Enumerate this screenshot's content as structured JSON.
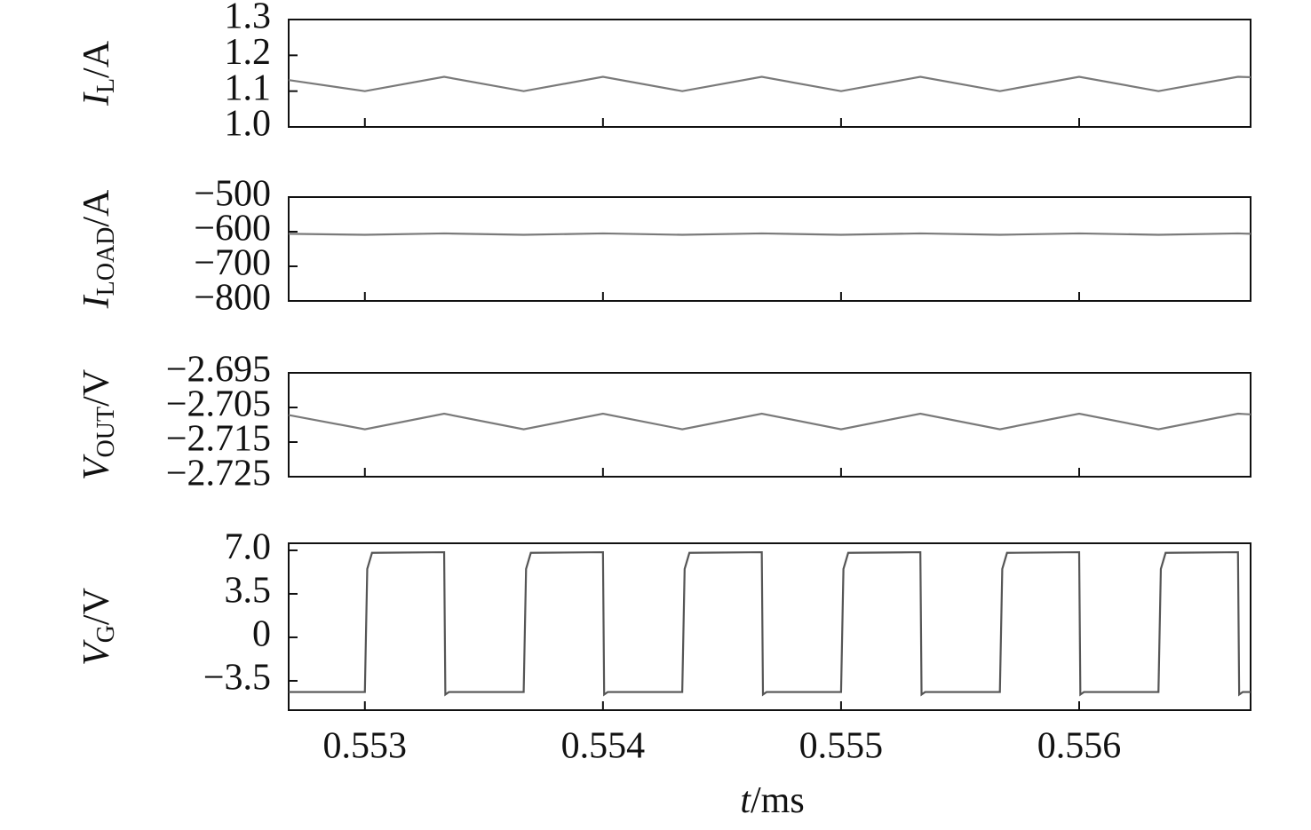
{
  "chart_data": [
    {
      "type": "line",
      "ylabel": {
        "symbol": "I",
        "subscript": "L",
        "unit": "/A"
      },
      "x": [
        0.55268,
        0.553,
        0.553333,
        0.553667,
        0.554,
        0.554333,
        0.554667,
        0.555,
        0.555333,
        0.555667,
        0.556,
        0.556333,
        0.556667,
        0.55672
      ],
      "values": [
        1.131,
        1.1,
        1.14,
        1.1,
        1.14,
        1.1,
        1.14,
        1.1,
        1.14,
        1.1,
        1.14,
        1.1,
        1.14,
        1.139
      ],
      "color": "#7a7a7a",
      "xlim": [
        0.55268,
        0.55672
      ],
      "xticks": [
        0.553,
        0.554,
        0.555,
        0.556
      ],
      "ylim": [
        1.0,
        1.3
      ],
      "yticks": [
        {
          "value": 1.0,
          "label": "1.0"
        },
        1.1,
        1.2,
        1.3
      ]
    },
    {
      "type": "line",
      "ylabel": {
        "symbol": "I",
        "subscript": "LOAD",
        "unit": "/A"
      },
      "x": [
        0.55268,
        0.553,
        0.553333,
        0.553667,
        0.554,
        0.554333,
        0.554667,
        0.555,
        0.555333,
        0.555667,
        0.556,
        0.556333,
        0.556667,
        0.55672
      ],
      "values": [
        -606,
        -609,
        -605,
        -609,
        -605,
        -609,
        -605,
        -609,
        -605,
        -609,
        -605,
        -609,
        -605,
        -606
      ],
      "color": "#7a7a7a",
      "xlim": [
        0.55268,
        0.55672
      ],
      "xticks": [
        0.553,
        0.554,
        0.555,
        0.556
      ],
      "ylim": [
        -800,
        -500
      ],
      "yticks": [
        {
          "value": -500,
          "label": "−500"
        },
        {
          "value": -600,
          "label": "−600"
        },
        {
          "value": -700,
          "label": "−700"
        },
        {
          "value": -800,
          "label": "−800"
        }
      ]
    },
    {
      "type": "line",
      "ylabel": {
        "symbol": "V",
        "subscript": "OUT",
        "unit": "/V"
      },
      "x": [
        0.55268,
        0.553,
        0.553333,
        0.553667,
        0.554,
        0.554333,
        0.554667,
        0.555,
        0.555333,
        0.555667,
        0.556,
        0.556333,
        0.556667,
        0.55672
      ],
      "values": [
        -2.7072,
        -2.7113,
        -2.7068,
        -2.7113,
        -2.7068,
        -2.7113,
        -2.7068,
        -2.7113,
        -2.7068,
        -2.7113,
        -2.7068,
        -2.7113,
        -2.7068,
        -2.707
      ],
      "color": "#7a7a7a",
      "xlim": [
        0.55268,
        0.55672
      ],
      "xticks": [
        0.553,
        0.554,
        0.555,
        0.556
      ],
      "ylim": [
        -2.725,
        -2.695
      ],
      "yticks": [
        {
          "value": -2.695,
          "label": "−2.695"
        },
        {
          "value": -2.705,
          "label": "−2.705"
        },
        {
          "value": -2.715,
          "label": "−2.715"
        },
        {
          "value": -2.725,
          "label": "−2.725"
        }
      ]
    },
    {
      "type": "line",
      "ylabel": {
        "symbol": "V",
        "subscript": "G",
        "unit": "/V"
      },
      "xlabel": {
        "symbol": "t",
        "unit": "/ms"
      },
      "x": [
        0.55268,
        0.553,
        0.55301,
        0.55303,
        0.553333,
        0.553338,
        0.553353,
        0.553667,
        0.553677,
        0.553697,
        0.554,
        0.554005,
        0.55402,
        0.554333,
        0.554343,
        0.554363,
        0.554667,
        0.554672,
        0.554687,
        0.555,
        0.55501,
        0.55503,
        0.555333,
        0.555338,
        0.555353,
        0.555667,
        0.555677,
        0.555697,
        0.556,
        0.556005,
        0.55602,
        0.556333,
        0.556343,
        0.556363,
        0.556667,
        0.556672,
        0.556687,
        0.55672
      ],
      "values": [
        -4.4,
        -4.4,
        5.5,
        6.8,
        6.85,
        -4.6,
        -4.4,
        -4.4,
        5.5,
        6.8,
        6.85,
        -4.6,
        -4.4,
        -4.4,
        5.5,
        6.8,
        6.85,
        -4.6,
        -4.4,
        -4.4,
        5.5,
        6.8,
        6.85,
        -4.6,
        -4.4,
        -4.4,
        5.5,
        6.8,
        6.85,
        -4.6,
        -4.4,
        -4.4,
        5.5,
        6.8,
        6.85,
        -4.6,
        -4.4,
        -4.4
      ],
      "color": "#555555",
      "xlim": [
        0.55268,
        0.55672
      ],
      "xticks": [
        0.553,
        0.554,
        0.555,
        0.556
      ],
      "ylim": [
        -5.86,
        7.57
      ],
      "yticks": [
        {
          "value": 7.0,
          "label": "7.0"
        },
        3.5,
        0,
        {
          "value": -3.5,
          "label": "−3.5"
        }
      ]
    }
  ]
}
